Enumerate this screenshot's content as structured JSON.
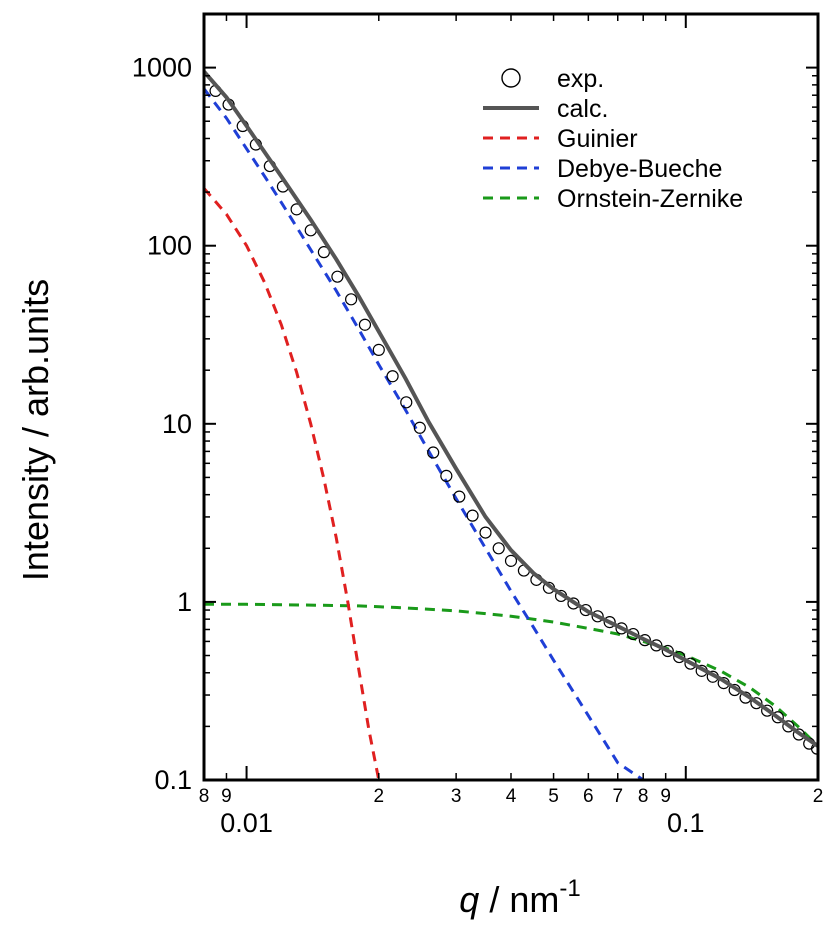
{
  "chart_data": {
    "type": "scatter",
    "title": "",
    "xlabel": {
      "symbol": "q",
      "unit": " / nm",
      "exponent": "-1"
    },
    "ylabel": "Intensity / arb.units",
    "x_scale": "log",
    "y_scale": "log",
    "xlim": [
      0.008,
      0.2
    ],
    "ylim": [
      0.1,
      2000
    ],
    "grid": false,
    "legend_position": "top-right",
    "x_ticks": {
      "major": [
        {
          "value": 0.01,
          "label": "0.01"
        },
        {
          "value": 0.1,
          "label": "0.1"
        }
      ],
      "minor": [
        {
          "value": 0.008,
          "label": "8"
        },
        {
          "value": 0.009,
          "label": "9"
        },
        {
          "value": 0.02,
          "label": "2"
        },
        {
          "value": 0.03,
          "label": "3"
        },
        {
          "value": 0.04,
          "label": "4"
        },
        {
          "value": 0.05,
          "label": "5"
        },
        {
          "value": 0.06,
          "label": "6"
        },
        {
          "value": 0.07,
          "label": "7"
        },
        {
          "value": 0.08,
          "label": "8"
        },
        {
          "value": 0.09,
          "label": "9"
        },
        {
          "value": 0.2,
          "label": "2"
        }
      ]
    },
    "y_ticks": [
      {
        "value": 0.1,
        "label": "0.1"
      },
      {
        "value": 1,
        "label": "1"
      },
      {
        "value": 10,
        "label": "10"
      },
      {
        "value": 100,
        "label": "100"
      },
      {
        "value": 1000,
        "label": "1000"
      }
    ],
    "series": [
      {
        "name": "exp.",
        "style": "open-circle",
        "color": "#000000",
        "x": [
          0.0085,
          0.0091,
          0.0098,
          0.0105,
          0.0113,
          0.0121,
          0.013,
          0.014,
          0.015,
          0.0161,
          0.0173,
          0.0186,
          0.02,
          0.0215,
          0.0231,
          0.0248,
          0.0266,
          0.0285,
          0.0305,
          0.0327,
          0.035,
          0.0375,
          0.04,
          0.0428,
          0.0457,
          0.0488,
          0.052,
          0.0555,
          0.0592,
          0.063,
          0.0671,
          0.0714,
          0.0759,
          0.0807,
          0.0857,
          0.091,
          0.0966,
          0.1025,
          0.1087,
          0.1152,
          0.122,
          0.1292,
          0.1368,
          0.1448,
          0.1532,
          0.162,
          0.1712,
          0.1809,
          0.191,
          0.199
        ],
        "y": [
          740,
          620,
          470,
          370,
          280,
          215,
          160,
          122,
          92,
          67,
          50,
          36,
          26,
          18.5,
          13.2,
          9.5,
          6.9,
          5.1,
          3.9,
          3.05,
          2.45,
          2.0,
          1.7,
          1.5,
          1.33,
          1.2,
          1.08,
          0.98,
          0.9,
          0.83,
          0.77,
          0.71,
          0.66,
          0.61,
          0.57,
          0.53,
          0.49,
          0.45,
          0.41,
          0.38,
          0.35,
          0.32,
          0.29,
          0.27,
          0.245,
          0.225,
          0.2,
          0.18,
          0.16,
          0.15
        ]
      },
      {
        "name": "calc.",
        "style": "solid",
        "color": "#555555",
        "x": [
          0.008,
          0.009,
          0.01,
          0.011,
          0.012,
          0.014,
          0.016,
          0.018,
          0.02,
          0.023,
          0.026,
          0.03,
          0.035,
          0.04,
          0.045,
          0.05,
          0.06,
          0.07,
          0.08,
          0.09,
          0.1,
          0.12,
          0.14,
          0.16,
          0.18,
          0.2
        ],
        "y": [
          950,
          680,
          470,
          335,
          245,
          140,
          84,
          52,
          33,
          18,
          10.2,
          5.6,
          3.0,
          1.95,
          1.45,
          1.18,
          0.88,
          0.73,
          0.62,
          0.54,
          0.47,
          0.37,
          0.29,
          0.23,
          0.185,
          0.155
        ]
      },
      {
        "name": "Guinier",
        "style": "dashed",
        "color": "#e02020",
        "x": [
          0.008,
          0.009,
          0.01,
          0.011,
          0.012,
          0.013,
          0.014,
          0.015,
          0.016,
          0.017,
          0.018,
          0.019,
          0.02
        ],
        "y": [
          210,
          150,
          100,
          62,
          36,
          19.5,
          10,
          4.9,
          2.3,
          1.0,
          0.42,
          0.19,
          0.1
        ]
      },
      {
        "name": "Debye-Bueche",
        "style": "dashed",
        "color": "#1f3fd6",
        "x": [
          0.008,
          0.009,
          0.01,
          0.011,
          0.012,
          0.014,
          0.016,
          0.018,
          0.02,
          0.023,
          0.026,
          0.03,
          0.035,
          0.04,
          0.045,
          0.05,
          0.06,
          0.07,
          0.08
        ],
        "y": [
          760,
          520,
          350,
          245,
          175,
          95,
          56,
          34,
          21.5,
          12,
          7.0,
          3.8,
          2.0,
          1.15,
          0.72,
          0.47,
          0.23,
          0.125,
          0.1
        ]
      },
      {
        "name": "Ornstein-Zernike",
        "style": "dashed",
        "color": "#1a9a1a",
        "x": [
          0.008,
          0.01,
          0.014,
          0.018,
          0.022,
          0.026,
          0.03,
          0.035,
          0.04,
          0.045,
          0.05,
          0.06,
          0.07,
          0.08,
          0.09,
          0.1,
          0.12,
          0.14,
          0.16,
          0.18,
          0.2
        ],
        "y": [
          0.97,
          0.97,
          0.96,
          0.95,
          0.93,
          0.91,
          0.89,
          0.86,
          0.83,
          0.8,
          0.77,
          0.71,
          0.66,
          0.6,
          0.55,
          0.5,
          0.41,
          0.33,
          0.26,
          0.2,
          0.155
        ]
      }
    ]
  }
}
